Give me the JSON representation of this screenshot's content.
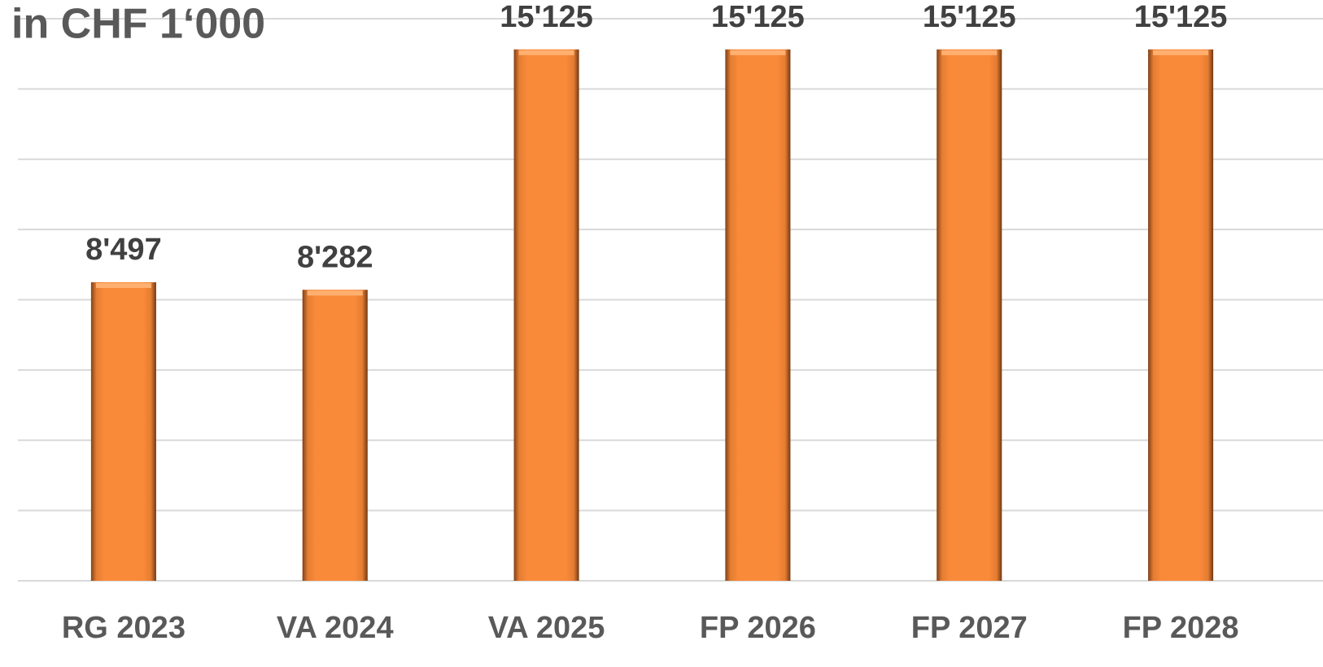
{
  "chart_data": {
    "type": "bar",
    "title": "in CHF 1‘000",
    "categories": [
      "RG 2023",
      "VA 2024",
      "VA 2025",
      "FP 2026",
      "FP 2027",
      "FP 2028"
    ],
    "values": [
      8497,
      8282,
      15125,
      15125,
      15125,
      15125
    ],
    "value_labels": [
      "8'497",
      "8'282",
      "15'125",
      "15'125",
      "15'125",
      "15'125"
    ],
    "color": "#f98a3a",
    "ylim": [
      0,
      16000
    ],
    "yticks": [
      0,
      2000,
      4000,
      6000,
      8000,
      10000,
      12000,
      14000,
      16000
    ],
    "grid": true
  }
}
